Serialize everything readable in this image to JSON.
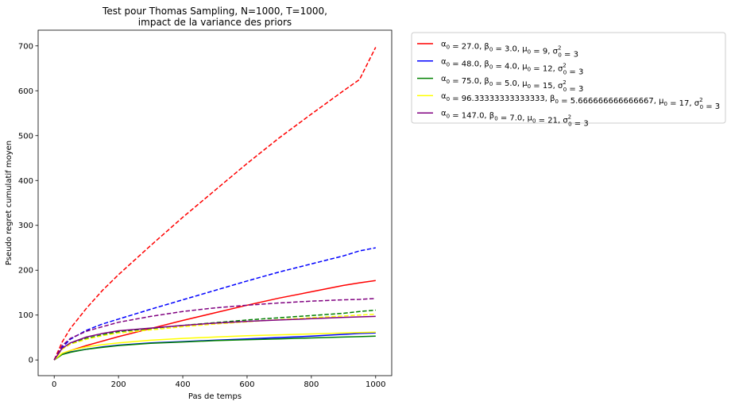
{
  "chart_data": {
    "type": "line",
    "title": "Test pour Thomas Sampling, N=1000, T=1000,",
    "subtitle": "impact de la variance des priors",
    "xlabel": "Pas de temps",
    "ylabel": "Pseudo regret cumulatif moyen",
    "xlim": [
      -50,
      1050
    ],
    "ylim": [
      -35,
      735
    ],
    "xticks": [
      0,
      200,
      400,
      600,
      800,
      1000
    ],
    "yticks": [
      0,
      100,
      200,
      300,
      400,
      500,
      600,
      700
    ],
    "grid": false,
    "legend_position": "outside-top-right",
    "x": [
      0,
      25,
      50,
      100,
      150,
      200,
      300,
      400,
      500,
      600,
      700,
      800,
      900,
      950,
      1000
    ],
    "series": [
      {
        "name": "red-solid",
        "color": "#ff0000",
        "dash": "solid",
        "values": [
          0,
          14,
          21,
          32,
          42,
          52,
          70,
          88,
          105,
          122,
          138,
          152,
          166,
          172,
          177
        ]
      },
      {
        "name": "red-dashed",
        "color": "#ff0000",
        "dash": "dashed",
        "values": [
          0,
          40,
          70,
          115,
          155,
          190,
          255,
          318,
          378,
          438,
          495,
          548,
          600,
          625,
          697
        ]
      },
      {
        "name": "blue-solid",
        "color": "#0000ff",
        "dash": "solid",
        "values": [
          0,
          13,
          18,
          24,
          29,
          33,
          38,
          41,
          44,
          47,
          50,
          53,
          57,
          59,
          60
        ]
      },
      {
        "name": "blue-dashed",
        "color": "#0000ff",
        "dash": "dashed",
        "values": [
          0,
          28,
          46,
          66,
          80,
          91,
          113,
          134,
          155,
          176,
          196,
          214,
          232,
          243,
          250
        ]
      },
      {
        "name": "green-solid",
        "color": "#008000",
        "dash": "solid",
        "values": [
          0,
          12,
          17,
          24,
          28,
          32,
          37,
          40,
          43,
          45,
          47,
          49,
          51,
          52,
          53
        ]
      },
      {
        "name": "green-dashed",
        "color": "#008000",
        "dash": "dashed",
        "values": [
          0,
          25,
          36,
          48,
          56,
          63,
          70,
          77,
          83,
          89,
          94,
          99,
          104,
          108,
          111
        ]
      },
      {
        "name": "yellow-solid",
        "color": "#ffff00",
        "dash": "solid",
        "values": [
          0,
          15,
          21,
          29,
          34,
          38,
          44,
          48,
          51,
          54,
          56,
          58,
          60,
          61,
          62
        ]
      },
      {
        "name": "yellow-dashed",
        "color": "#ffff00",
        "dash": "dashed",
        "values": [
          0,
          24,
          35,
          46,
          54,
          60,
          67,
          74,
          80,
          85,
          90,
          94,
          98,
          100,
          102
        ]
      },
      {
        "name": "purple-solid",
        "color": "#800080",
        "dash": "solid",
        "values": [
          0,
          26,
          38,
          51,
          59,
          65,
          71,
          77,
          82,
          86,
          89,
          92,
          95,
          96,
          97
        ]
      },
      {
        "name": "purple-dashed",
        "color": "#800080",
        "dash": "dashed",
        "values": [
          0,
          32,
          48,
          64,
          74,
          84,
          97,
          108,
          116,
          122,
          127,
          131,
          134,
          135,
          137
        ]
      }
    ],
    "legend": [
      {
        "color": "#ff0000",
        "parts": [
          {
            "t": "α"
          },
          {
            "sub": "0"
          },
          {
            "t": " = 27.0, "
          },
          {
            "t": "β"
          },
          {
            "sub": "0"
          },
          {
            "t": " = 3.0,  "
          },
          {
            "t": "μ"
          },
          {
            "sub": "0"
          },
          {
            "t": " = 9, "
          },
          {
            "t": "σ"
          },
          {
            "supsub": [
              "2",
              "0"
            ]
          },
          {
            "t": " = 3"
          }
        ]
      },
      {
        "color": "#0000ff",
        "parts": [
          {
            "t": "α"
          },
          {
            "sub": "0"
          },
          {
            "t": " = 48.0, "
          },
          {
            "t": "β"
          },
          {
            "sub": "0"
          },
          {
            "t": " = 4.0,  "
          },
          {
            "t": "μ"
          },
          {
            "sub": "0"
          },
          {
            "t": " = 12, "
          },
          {
            "t": "σ"
          },
          {
            "supsub": [
              "2",
              "0"
            ]
          },
          {
            "t": " = 3"
          }
        ]
      },
      {
        "color": "#008000",
        "parts": [
          {
            "t": "α"
          },
          {
            "sub": "0"
          },
          {
            "t": " = 75.0, "
          },
          {
            "t": "β"
          },
          {
            "sub": "0"
          },
          {
            "t": " = 5.0,  "
          },
          {
            "t": "μ"
          },
          {
            "sub": "0"
          },
          {
            "t": " = 15, "
          },
          {
            "t": "σ"
          },
          {
            "supsub": [
              "2",
              "0"
            ]
          },
          {
            "t": " = 3"
          }
        ]
      },
      {
        "color": "#ffff00",
        "parts": [
          {
            "t": "α"
          },
          {
            "sub": "0"
          },
          {
            "t": " = 96.33333333333333, "
          },
          {
            "t": "β"
          },
          {
            "sub": "0"
          },
          {
            "t": " = 5.666666666666667,  "
          },
          {
            "t": "μ"
          },
          {
            "sub": "0"
          },
          {
            "t": " = 17, "
          },
          {
            "t": "σ"
          },
          {
            "supsub": [
              "2",
              "0"
            ]
          },
          {
            "t": " = 3"
          }
        ]
      },
      {
        "color": "#800080",
        "parts": [
          {
            "t": "α"
          },
          {
            "sub": "0"
          },
          {
            "t": " = 147.0, "
          },
          {
            "t": "β"
          },
          {
            "sub": "0"
          },
          {
            "t": " = 7.0,  "
          },
          {
            "t": "μ"
          },
          {
            "sub": "0"
          },
          {
            "t": " = 21, "
          },
          {
            "t": "σ"
          },
          {
            "supsub": [
              "2",
              "0"
            ]
          },
          {
            "t": " = 3"
          }
        ]
      }
    ]
  }
}
